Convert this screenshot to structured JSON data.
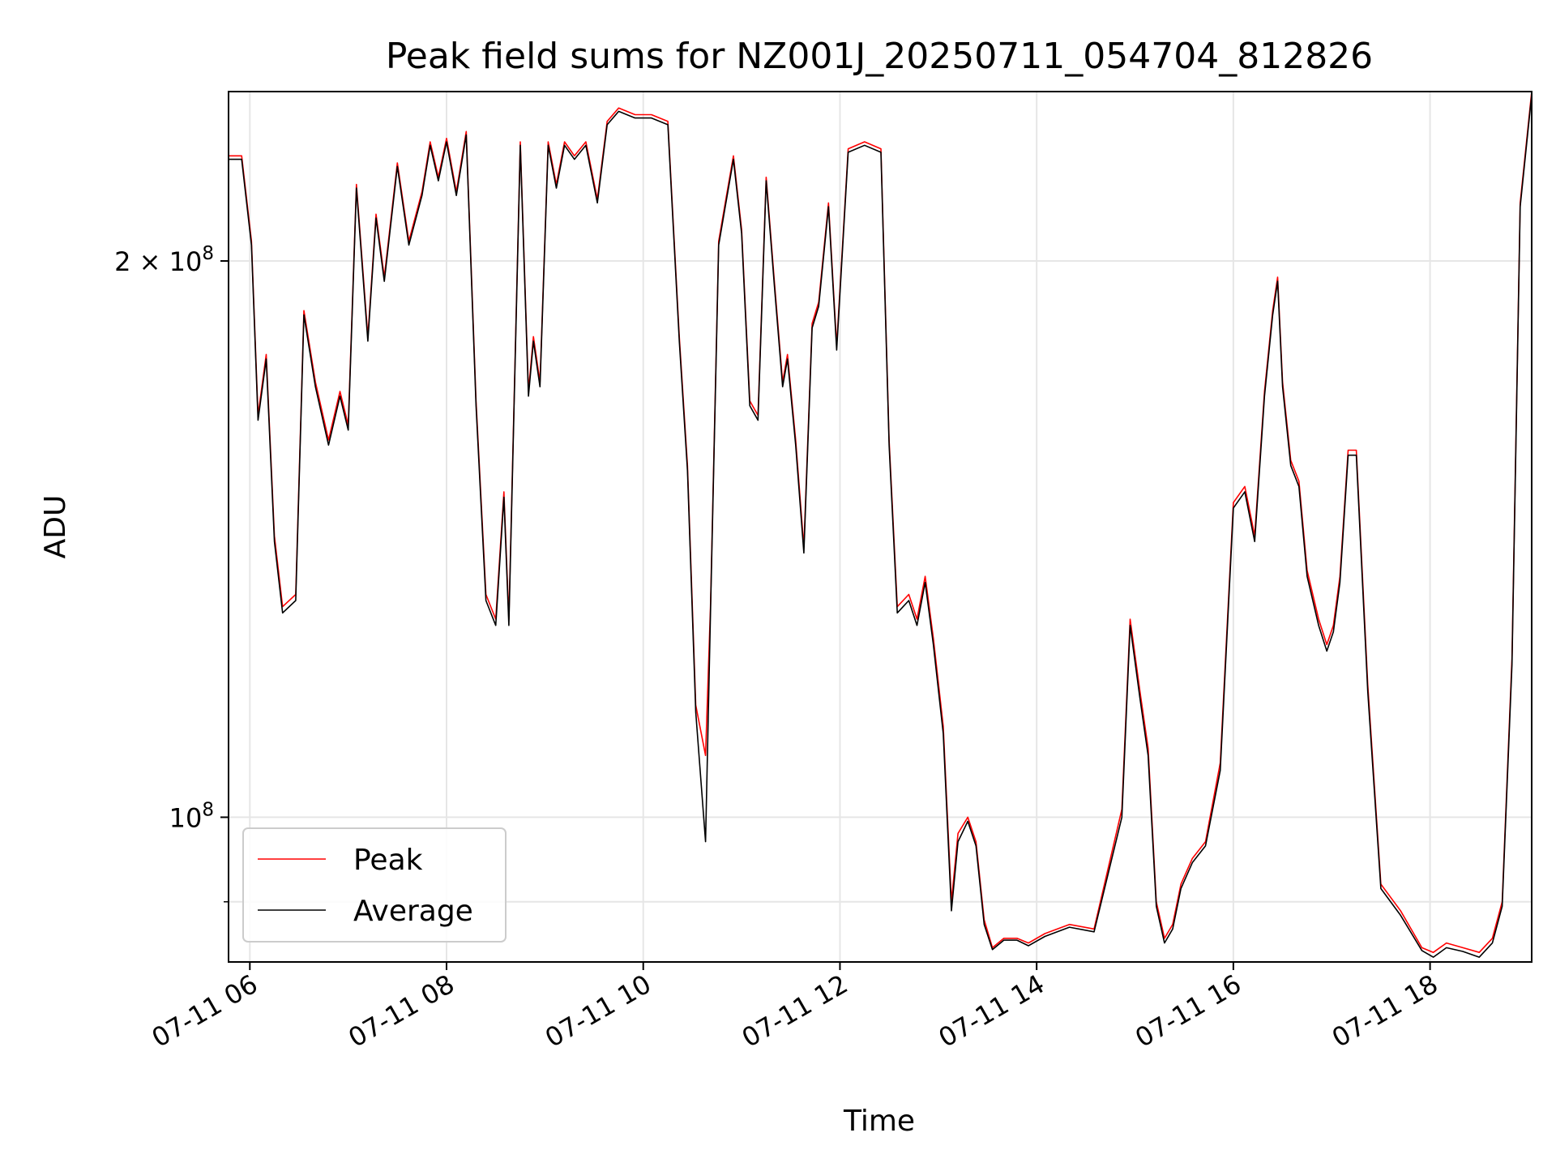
{
  "chart_data": {
    "type": "line",
    "title": "Peak field sums for NZ001J_20250711_054704_812826",
    "xlabel": "Time",
    "ylabel": "ADU",
    "y_scale": "log",
    "grid": true,
    "legend_position": "bottom-left",
    "x_range": [
      "2025-07-11 05:47",
      "2025-07-11 19:02"
    ],
    "y_range": [
      83500000.0,
      247000000.0
    ],
    "x_ticks": [
      "07-11 06",
      "07-11 08",
      "07-11 10",
      "07-11 12",
      "07-11 14",
      "07-11 16",
      "07-11 18"
    ],
    "x_tick_times": [
      "2025-07-11 06:00",
      "2025-07-11 08:00",
      "2025-07-11 10:00",
      "2025-07-11 12:00",
      "2025-07-11 14:00",
      "2025-07-11 16:00",
      "2025-07-11 18:00"
    ],
    "y_major_ticks": [
      {
        "value": 100000000,
        "base": "10",
        "exp": "8",
        "coef": ""
      },
      {
        "value": 200000000,
        "base": "10",
        "exp": "8",
        "coef": "2 × "
      }
    ],
    "y_minor_ticks": [
      90000000
    ],
    "x": [
      "05:47",
      "05:55",
      "06:01",
      "06:05",
      "06:10",
      "06:15",
      "06:20",
      "06:28",
      "06:33",
      "06:40",
      "06:48",
      "06:55",
      "07:00",
      "07:05",
      "07:12",
      "07:17",
      "07:22",
      "07:30",
      "07:37",
      "07:45",
      "07:50",
      "07:55",
      "08:00",
      "08:06",
      "08:12",
      "08:18",
      "08:24",
      "08:30",
      "08:35",
      "08:38",
      "08:45",
      "08:50",
      "08:53",
      "08:57",
      "09:02",
      "09:07",
      "09:12",
      "09:18",
      "09:25",
      "09:32",
      "09:38",
      "09:45",
      "09:55",
      "10:05",
      "10:15",
      "10:22",
      "10:27",
      "10:32",
      "10:38",
      "10:41",
      "10:46",
      "10:50",
      "10:55",
      "11:00",
      "11:05",
      "11:10",
      "11:15",
      "11:20",
      "11:25",
      "11:28",
      "11:33",
      "11:38",
      "11:43",
      "11:47",
      "11:53",
      "11:58",
      "12:05",
      "12:15",
      "12:25",
      "12:30",
      "12:35",
      "12:42",
      "12:47",
      "12:52",
      "12:57",
      "13:03",
      "13:08",
      "13:12",
      "13:18",
      "13:23",
      "13:28",
      "13:33",
      "13:40",
      "13:48",
      "13:55",
      "14:05",
      "14:20",
      "14:35",
      "14:52",
      "14:57",
      "15:03",
      "15:08",
      "15:13",
      "15:18",
      "15:23",
      "15:28",
      "15:35",
      "15:43",
      "15:52",
      "16:00",
      "16:07",
      "16:13",
      "16:19",
      "16:24",
      "16:27",
      "16:30",
      "16:35",
      "16:40",
      "16:45",
      "16:52",
      "16:57",
      "17:01",
      "17:05",
      "17:10",
      "17:15",
      "17:22",
      "17:30",
      "17:42",
      "17:55",
      "18:02",
      "18:10",
      "18:20",
      "18:30",
      "18:38",
      "18:44",
      "18:50",
      "18:55",
      "19:02"
    ],
    "series": [
      {
        "name": "Peak",
        "color": "#ff0000",
        "values": [
          228000000,
          228000000,
          205000000,
          165000000,
          178000000,
          142000000,
          130000000,
          132000000,
          188000000,
          172000000,
          160000000,
          170000000,
          163000000,
          220000000,
          182000000,
          212000000,
          196000000,
          226000000,
          205000000,
          218000000,
          232000000,
          222000000,
          233000000,
          218000000,
          235000000,
          168000000,
          132000000,
          128000000,
          150000000,
          128000000,
          232000000,
          170000000,
          182000000,
          172000000,
          232000000,
          220000000,
          232000000,
          228000000,
          232000000,
          216000000,
          238000000,
          242000000,
          240000000,
          240000000,
          238000000,
          182000000,
          155000000,
          115000000,
          108000000,
          130000000,
          205000000,
          215000000,
          228000000,
          208000000,
          168000000,
          165000000,
          222000000,
          195000000,
          172000000,
          178000000,
          160000000,
          140000000,
          185000000,
          190000000,
          215000000,
          180000000,
          230000000,
          232000000,
          230000000,
          160000000,
          130000000,
          132000000,
          128000000,
          135000000,
          125000000,
          112000000,
          90000000,
          98000000,
          100000000,
          97000000,
          88000000,
          85000000,
          86000000,
          86000000,
          85500000,
          86500000,
          87500000,
          87000000,
          101000000,
          128000000,
          117000000,
          109000000,
          90000000,
          86000000,
          87500000,
          92000000,
          95000000,
          97000000,
          107000000,
          148000000,
          151000000,
          142000000,
          170000000,
          188000000,
          196000000,
          172000000,
          156000000,
          152000000,
          136000000,
          128000000,
          124000000,
          127000000,
          135000000,
          158000000,
          158000000,
          118000000,
          92000000,
          89000000,
          85000000,
          84500000,
          85500000,
          85000000,
          84500000,
          86000000,
          90000000,
          122000000,
          215000000,
          247000000
        ]
      },
      {
        "name": "Average",
        "color": "#000000",
        "values": [
          227000000,
          227000000,
          204000000,
          164000000,
          177000000,
          141000000,
          129000000,
          131000000,
          187000000,
          171000000,
          159000000,
          169000000,
          162000000,
          219000000,
          181000000,
          211000000,
          195000000,
          225000000,
          204000000,
          217000000,
          231000000,
          221000000,
          232000000,
          217000000,
          234000000,
          167000000,
          131000000,
          127000000,
          149000000,
          127000000,
          231000000,
          169000000,
          181000000,
          171000000,
          231000000,
          219000000,
          231000000,
          227000000,
          231000000,
          215000000,
          237000000,
          241000000,
          239000000,
          239000000,
          237000000,
          181000000,
          154000000,
          114000000,
          97000000,
          129000000,
          204000000,
          214000000,
          227000000,
          207000000,
          167000000,
          164000000,
          221000000,
          194000000,
          171000000,
          177000000,
          159000000,
          139000000,
          184000000,
          189000000,
          214000000,
          179000000,
          229000000,
          231000000,
          229000000,
          159000000,
          129000000,
          131000000,
          127000000,
          134000000,
          124000000,
          111000000,
          89000000,
          97000000,
          99500000,
          96500000,
          87500000,
          84800000,
          85800000,
          85800000,
          85200000,
          86200000,
          87200000,
          86700000,
          100000000,
          127000000,
          116000000,
          108000000,
          89500000,
          85500000,
          87000000,
          91500000,
          94500000,
          96500000,
          106000000,
          147000000,
          150000000,
          141000000,
          169000000,
          187000000,
          195000000,
          171000000,
          155000000,
          151000000,
          135000000,
          127000000,
          123000000,
          126000000,
          134000000,
          157000000,
          157000000,
          117000000,
          91500000,
          88500000,
          84700000,
          84000000,
          85000000,
          84600000,
          84000000,
          85500000,
          89500000,
          121000000,
          214000000,
          246000000
        ]
      }
    ]
  }
}
